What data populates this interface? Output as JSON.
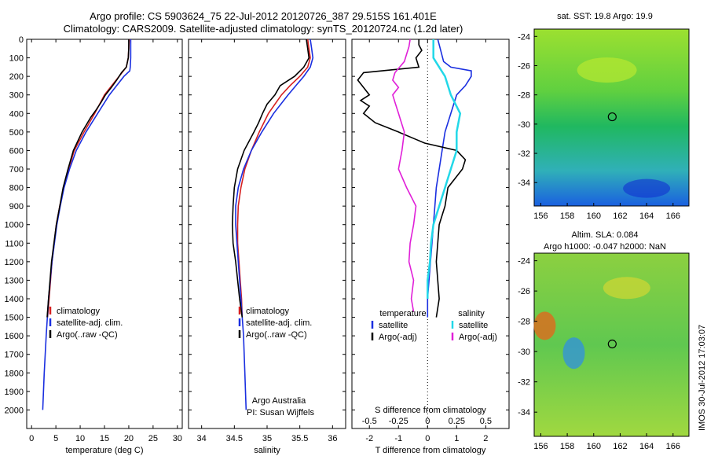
{
  "header": {
    "line1": "Argo profile: CS 5903624_75 22-Jul-2012 20120726_387 29.515S 161.401E",
    "line2": "Climatology: CARS2009. Satellite-adjusted climatology: synTS_20120724.nc (1.2d later)"
  },
  "colors": {
    "climatology": "#d62020",
    "satellite": "#1a2fe0",
    "argo": "#000000",
    "sat_salinity": "#22d8e8",
    "argo_salinity": "#e020d8"
  },
  "chart_data": [
    {
      "id": "temperature",
      "type": "line",
      "xlabel": "temperature (deg C)",
      "ylabel": "",
      "xlim": [
        -1,
        31
      ],
      "ylim": [
        2100,
        0
      ],
      "xticks": [
        0,
        5,
        10,
        15,
        20,
        25,
        30
      ],
      "yticks": [
        0,
        100,
        200,
        300,
        400,
        500,
        600,
        700,
        800,
        900,
        1000,
        1100,
        1200,
        1300,
        1400,
        1500,
        1600,
        1700,
        1800,
        1900,
        2000
      ],
      "legend": [
        "climatology",
        "satellite-adj. clim.",
        "Argo(..raw -QC)"
      ],
      "series": [
        {
          "name": "climatology",
          "depth": [
            0,
            50,
            100,
            150,
            200,
            250,
            300,
            400,
            500,
            600,
            700,
            800,
            900,
            1000,
            1200,
            1400,
            1500
          ],
          "x": [
            20.1,
            20.0,
            19.9,
            19.5,
            18.0,
            16.5,
            15.0,
            13.0,
            10.8,
            8.8,
            7.6,
            6.6,
            5.8,
            5.1,
            4.2,
            3.6,
            3.3
          ]
        },
        {
          "name": "satellite-adj. clim.",
          "depth": [
            0,
            50,
            100,
            150,
            170,
            200,
            250,
            300,
            400,
            500,
            600,
            700,
            800,
            900,
            1000,
            1200,
            1400,
            1600,
            1800,
            2000
          ],
          "x": [
            20.4,
            20.4,
            20.4,
            20.3,
            20.2,
            19.0,
            17.5,
            16.0,
            13.6,
            11.2,
            9.2,
            7.8,
            6.7,
            5.9,
            5.2,
            4.2,
            3.5,
            3.0,
            2.6,
            2.3
          ]
        },
        {
          "name": "Argo(..raw -QC)",
          "depth": [
            0,
            50,
            100,
            150,
            180,
            220,
            260,
            300,
            340,
            380,
            420,
            500,
            600,
            700,
            800,
            900,
            1000,
            1200,
            1400,
            1500
          ],
          "x": [
            20.0,
            20.0,
            19.9,
            19.5,
            18.5,
            17.5,
            16.4,
            15.2,
            14.3,
            13.3,
            12.2,
            10.4,
            8.6,
            7.5,
            6.5,
            5.8,
            5.1,
            4.1,
            3.5,
            3.2
          ]
        }
      ]
    },
    {
      "id": "salinity",
      "type": "line",
      "xlabel": "salinity",
      "ylabel": "",
      "xlim": [
        33.8,
        36.2
      ],
      "ylim": [
        2100,
        0
      ],
      "xticks": [
        34,
        34.5,
        35,
        35.5,
        36
      ],
      "legend": [
        "climatology",
        "satellite-adj. clim.",
        "Argo(..raw -QC)"
      ],
      "note": [
        "Argo Australia",
        "PI: Susan Wijffels"
      ],
      "series": [
        {
          "name": "climatology",
          "depth": [
            0,
            50,
            100,
            150,
            200,
            250,
            300,
            400,
            500,
            600,
            700,
            800,
            900,
            1000,
            1100,
            1200,
            1300,
            1400,
            1500
          ],
          "x": [
            35.62,
            35.64,
            35.66,
            35.62,
            35.5,
            35.35,
            35.22,
            35.02,
            34.88,
            34.76,
            34.66,
            34.6,
            34.56,
            34.55,
            34.55,
            34.57,
            34.59,
            34.61,
            34.62
          ]
        },
        {
          "name": "satellite-adj. clim.",
          "depth": [
            0,
            50,
            100,
            150,
            200,
            250,
            300,
            400,
            500,
            600,
            700,
            800,
            900,
            1000,
            1200,
            1400,
            1600,
            1800,
            2000
          ],
          "x": [
            35.66,
            35.68,
            35.7,
            35.66,
            35.56,
            35.44,
            35.32,
            35.1,
            34.92,
            34.76,
            34.64,
            34.56,
            34.52,
            34.52,
            34.56,
            34.6,
            34.64,
            34.66,
            34.68
          ]
        },
        {
          "name": "Argo(..raw -QC)",
          "depth": [
            0,
            50,
            100,
            150,
            200,
            250,
            300,
            350,
            400,
            450,
            500,
            600,
            700,
            800,
            900,
            1000,
            1100,
            1200,
            1300,
            1400,
            1500
          ],
          "x": [
            35.6,
            35.62,
            35.64,
            35.56,
            35.42,
            35.2,
            35.12,
            35.0,
            34.93,
            34.87,
            34.8,
            34.65,
            34.55,
            34.5,
            34.48,
            34.47,
            34.48,
            34.52,
            34.55,
            34.58,
            34.62
          ]
        }
      ]
    },
    {
      "id": "difference",
      "type": "line",
      "xlabel_top": "S difference from climatology",
      "xlabel": "T difference from climatology",
      "xlim": [
        -2.6,
        2.8
      ],
      "ylim": [
        2100,
        0
      ],
      "xticks_T": [
        -2,
        -1,
        0,
        1,
        2
      ],
      "xticks_S": [
        -0.5,
        -0.25,
        0,
        0.25,
        0.5
      ],
      "legend_temperature": "temperature",
      "legend_salinity": "salinity",
      "legend_entries": [
        "satellite",
        "Argo(-adj)",
        "satellite",
        "Argo(-adj)"
      ],
      "series": [
        {
          "name": "T satellite",
          "depth": [
            0,
            60,
            120,
            150,
            170,
            200,
            250,
            300,
            400,
            500,
            600,
            700,
            800,
            900,
            1000,
            1100,
            1200,
            1300,
            1400,
            1500
          ],
          "x": [
            0.35,
            0.45,
            0.55,
            0.8,
            1.5,
            1.5,
            1.3,
            1.0,
            0.8,
            0.6,
            0.5,
            0.4,
            0.3,
            0.25,
            0.2,
            0.15,
            0.1,
            0.05,
            0.0,
            0.0
          ]
        },
        {
          "name": "T Argo(-adj)",
          "depth": [
            0,
            30,
            60,
            100,
            150,
            180,
            220,
            260,
            300,
            330,
            360,
            400,
            450,
            500,
            540,
            560,
            600,
            650,
            700,
            800,
            900,
            1000,
            1200,
            1400,
            1500
          ],
          "x": [
            -0.3,
            -0.3,
            -0.2,
            -0.4,
            -0.3,
            -2.2,
            -2.4,
            -2.2,
            -2.0,
            -2.3,
            -2.0,
            -2.2,
            -1.8,
            -1.0,
            -0.4,
            -0.1,
            1.0,
            1.3,
            1.2,
            0.7,
            0.6,
            0.4,
            0.3,
            0.4,
            0.3
          ]
        },
        {
          "name": "S satellite",
          "depth": [
            0,
            60,
            100,
            150,
            200,
            300,
            400,
            500,
            600,
            700,
            800,
            900,
            1000,
            1100,
            1200,
            1300,
            1400
          ],
          "x": [
            0.05,
            0.05,
            0.05,
            0.1,
            0.15,
            0.2,
            0.28,
            0.25,
            0.25,
            0.2,
            0.15,
            0.1,
            0.05,
            0.03,
            0.02,
            0.0,
            0.0
          ]
        },
        {
          "name": "S Argo(-adj)",
          "depth": [
            0,
            40,
            80,
            120,
            180,
            220,
            260,
            300,
            340,
            400,
            500,
            600,
            700,
            800,
            900,
            1000,
            1100,
            1200,
            1300,
            1400,
            1470
          ],
          "x": [
            -0.15,
            -0.16,
            -0.18,
            -0.2,
            -0.28,
            -0.3,
            -0.25,
            -0.3,
            -0.28,
            -0.25,
            -0.2,
            -0.22,
            -0.25,
            -0.18,
            -0.1,
            -0.12,
            -0.15,
            -0.16,
            -0.12,
            -0.14,
            -0.12
          ]
        }
      ]
    },
    {
      "id": "sst_map",
      "type": "heatmap",
      "title": "sat. SST: 19.8  Argo: 19.9",
      "xticks": [
        156,
        158,
        160,
        162,
        164,
        166
      ],
      "yticks": [
        -24,
        -26,
        -28,
        -30,
        -32,
        -34
      ],
      "xlim": [
        155.5,
        167.2
      ],
      "ylim": [
        -35.6,
        -23.5
      ],
      "float_position": [
        161.4,
        -29.5
      ]
    },
    {
      "id": "sla_map",
      "type": "heatmap",
      "title_line1": "Altim. SLA: 0.084",
      "title_line2": "Argo h1000: -0.047 h2000: NaN",
      "xticks": [
        156,
        158,
        160,
        162,
        164,
        166
      ],
      "yticks": [
        -24,
        -26,
        -28,
        -30,
        -32,
        -34
      ],
      "xlim": [
        155.5,
        167.2
      ],
      "ylim": [
        -35.6,
        -23.5
      ],
      "float_position": [
        161.4,
        -29.5
      ]
    }
  ],
  "stamp": "IMOS 30-Jul-2012 17:03:07"
}
